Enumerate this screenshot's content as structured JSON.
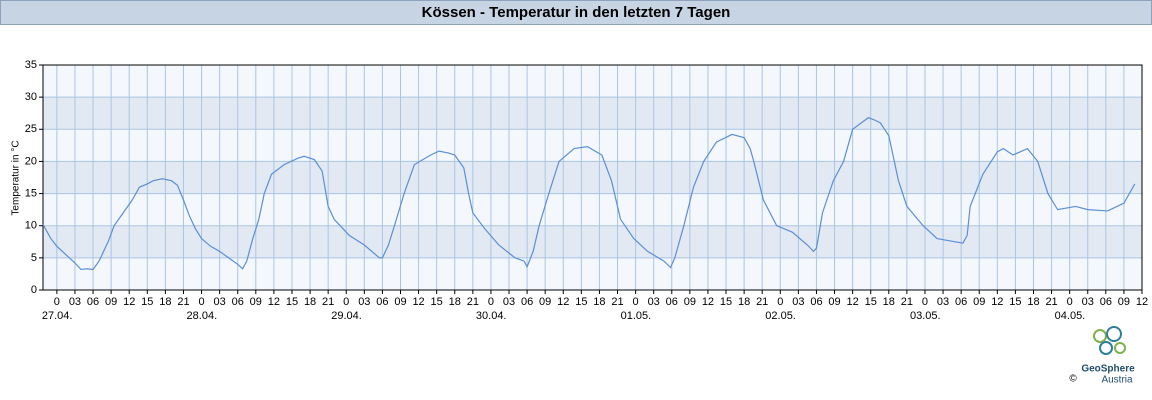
{
  "header": {
    "title": "Kössen - Temperatur in den letzten 7 Tagen"
  },
  "chart_data": {
    "type": "line",
    "ylabel": "Temperatur in °C",
    "color": "#5b8fd8",
    "grid": true,
    "xlim": [
      -2.3,
      180
    ],
    "ylim": [
      0,
      35
    ],
    "yticks": [
      0,
      5,
      10,
      15,
      20,
      25,
      30,
      35
    ],
    "xticks": [
      0,
      {
        "value": 3,
        "label": "03"
      },
      {
        "value": 6,
        "label": "06"
      },
      {
        "value": 9,
        "label": "09"
      },
      12,
      15,
      18,
      21,
      {
        "value": 24,
        "label": "0"
      },
      {
        "value": 27,
        "label": "03"
      },
      {
        "value": 30,
        "label": "06"
      },
      {
        "value": 33,
        "label": "09"
      },
      {
        "value": 36,
        "label": "12"
      },
      {
        "value": 39,
        "label": "15"
      },
      {
        "value": 42,
        "label": "18"
      },
      {
        "value": 45,
        "label": "21"
      },
      {
        "value": 48,
        "label": "0"
      },
      {
        "value": 51,
        "label": "03"
      },
      {
        "value": 54,
        "label": "06"
      },
      {
        "value": 57,
        "label": "09"
      },
      {
        "value": 60,
        "label": "12"
      },
      {
        "value": 63,
        "label": "15"
      },
      {
        "value": 66,
        "label": "18"
      },
      {
        "value": 69,
        "label": "21"
      },
      {
        "value": 72,
        "label": "0"
      },
      {
        "value": 75,
        "label": "03"
      },
      {
        "value": 78,
        "label": "06"
      },
      {
        "value": 81,
        "label": "09"
      },
      {
        "value": 84,
        "label": "12"
      },
      {
        "value": 87,
        "label": "15"
      },
      {
        "value": 90,
        "label": "18"
      },
      {
        "value": 93,
        "label": "21"
      },
      {
        "value": 96,
        "label": "0"
      },
      {
        "value": 99,
        "label": "03"
      },
      {
        "value": 102,
        "label": "06"
      },
      {
        "value": 105,
        "label": "09"
      },
      {
        "value": 108,
        "label": "12"
      },
      {
        "value": 111,
        "label": "15"
      },
      {
        "value": 114,
        "label": "18"
      },
      {
        "value": 117,
        "label": "21"
      },
      {
        "value": 120,
        "label": "0"
      },
      {
        "value": 123,
        "label": "03"
      },
      {
        "value": 126,
        "label": "06"
      },
      {
        "value": 129,
        "label": "09"
      },
      {
        "value": 132,
        "label": "12"
      },
      {
        "value": 135,
        "label": "15"
      },
      {
        "value": 138,
        "label": "18"
      },
      {
        "value": 141,
        "label": "21"
      },
      {
        "value": 144,
        "label": "0"
      },
      {
        "value": 147,
        "label": "03"
      },
      {
        "value": 150,
        "label": "06"
      },
      {
        "value": 153,
        "label": "09"
      },
      {
        "value": 156,
        "label": "12"
      },
      {
        "value": 159,
        "label": "15"
      },
      {
        "value": 162,
        "label": "18"
      },
      {
        "value": 165,
        "label": "21"
      },
      {
        "value": 168,
        "label": "0"
      },
      {
        "value": 171,
        "label": "03"
      },
      {
        "value": 174,
        "label": "06"
      },
      {
        "value": 177,
        "label": "09"
      },
      {
        "value": 180,
        "label": "12"
      }
    ],
    "date_ticks": [
      {
        "value": 0,
        "label": "27.04."
      },
      {
        "value": 24,
        "label": "28.04."
      },
      {
        "value": 48,
        "label": "29.04."
      },
      {
        "value": 72,
        "label": "30.04."
      },
      {
        "value": 96,
        "label": "01.05."
      },
      {
        "value": 120,
        "label": "02.05."
      },
      {
        "value": 144,
        "label": "03.05."
      },
      {
        "value": 168,
        "label": "04.05."
      }
    ],
    "x": [
      -2.3,
      -1,
      0,
      1.5,
      3,
      4,
      5,
      6,
      7,
      8.5,
      9.5,
      11,
      12.5,
      13.7,
      15,
      16,
      17.5,
      19,
      20,
      21,
      22,
      23,
      24,
      25.5,
      27,
      28.5,
      30,
      30.8,
      31.5,
      32.5,
      33.5,
      34.4,
      35.6,
      37.7,
      40,
      41,
      42.7,
      44,
      45,
      46,
      47,
      48.5,
      51,
      53.5,
      54,
      55,
      56,
      57.6,
      59.3,
      62,
      63.4,
      65,
      66,
      67.5,
      68.3,
      69,
      71,
      73.3,
      76,
      77.5,
      78,
      79,
      80,
      81.6,
      83.3,
      85.8,
      88,
      90.4,
      92,
      93.5,
      95.7,
      98,
      100.7,
      101.8,
      102.5,
      104,
      105.6,
      107.3,
      109.4,
      112,
      114,
      115,
      115.6,
      117.2,
      119.4,
      122,
      124.5,
      125.5,
      126,
      127,
      128.8,
      130.5,
      132,
      134.6,
      135.5,
      136.6,
      138,
      139.6,
      141,
      143.7,
      146,
      149,
      150.3,
      151,
      151.5,
      153.6,
      156,
      157,
      158.6,
      161,
      162.7,
      164.4,
      166,
      169,
      171,
      174.3,
      177,
      178.8
    ],
    "values": [
      10.2,
      8,
      6.8,
      5.5,
      4.2,
      3.2,
      3.3,
      3.2,
      4.5,
      7.5,
      10,
      12,
      14,
      16,
      16.5,
      17,
      17.3,
      17,
      16.3,
      14,
      11.5,
      9.5,
      8,
      6.8,
      6,
      5,
      4,
      3.3,
      4.5,
      8,
      11,
      15,
      18,
      19.5,
      20.5,
      20.8,
      20.3,
      18.5,
      13,
      11,
      10,
      8.5,
      7,
      5,
      5,
      7,
      10,
      15,
      19.5,
      21,
      21.6,
      21.3,
      21,
      19,
      15,
      12,
      9.5,
      7,
      5,
      4.5,
      3.6,
      6,
      10,
      15,
      20,
      22,
      22.3,
      21,
      17,
      11,
      8,
      6,
      4.5,
      3.5,
      5,
      10,
      16,
      20,
      23,
      24.2,
      23.7,
      22,
      20,
      14,
      10,
      9,
      7,
      6,
      6.5,
      12,
      17,
      20,
      25,
      26.8,
      26.5,
      26,
      24,
      17,
      13,
      10,
      8,
      7.5,
      7.3,
      8.5,
      13,
      18,
      21.5,
      22,
      21,
      22,
      20,
      15,
      12.5,
      13,
      12.5,
      12.3,
      13.5,
      16.5
    ]
  },
  "footer": {
    "logo_name": "GeoSphere",
    "logo_sub": "Austria",
    "copyright": "©"
  }
}
